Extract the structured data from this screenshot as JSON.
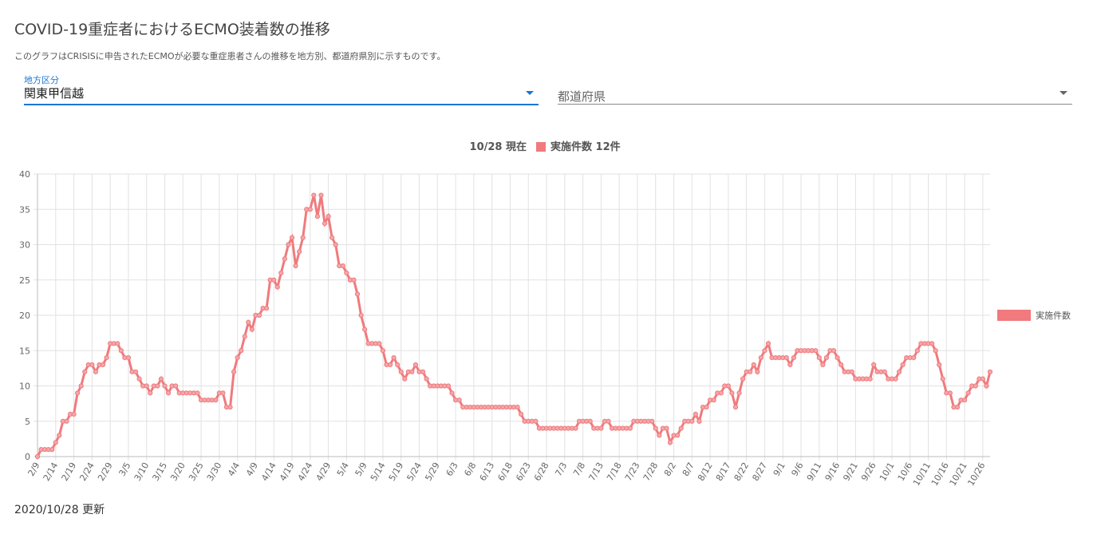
{
  "header": {
    "title": "COVID-19重症者におけるECMO装着数の推移",
    "description": "このグラフはCRISISに申告されたECMOが必要な重症患者さんの推移を地方別、都道府県別に示すものです。"
  },
  "filters": {
    "region_label": "地方区分",
    "region_value": "関東甲信越",
    "prefecture_placeholder": "都道府県"
  },
  "chart_data": {
    "type": "line",
    "title": "10/28 現在",
    "headline_legend": "実施件数 12件",
    "categories": [
      "2/9",
      null,
      null,
      null,
      null,
      "2/14",
      null,
      null,
      null,
      null,
      "2/19",
      null,
      null,
      null,
      null,
      "2/24",
      null,
      null,
      null,
      null,
      "2/29",
      null,
      null,
      null,
      null,
      "3/5",
      null,
      null,
      null,
      null,
      "3/10",
      null,
      null,
      null,
      null,
      "3/15",
      null,
      null,
      null,
      null,
      "3/20",
      null,
      null,
      null,
      null,
      "3/25",
      null,
      null,
      null,
      null,
      "3/30",
      null,
      null,
      null,
      null,
      "4/4",
      null,
      null,
      null,
      null,
      "4/9",
      null,
      null,
      null,
      null,
      "4/14",
      null,
      null,
      null,
      null,
      "4/19",
      null,
      null,
      null,
      null,
      "4/24",
      null,
      null,
      null,
      null,
      "4/29",
      null,
      null,
      null,
      null,
      "5/4",
      null,
      null,
      null,
      null,
      "5/9",
      null,
      null,
      null,
      null,
      "5/14",
      null,
      null,
      null,
      null,
      "5/19",
      null,
      null,
      null,
      null,
      "5/24",
      null,
      null,
      null,
      null,
      "5/29",
      null,
      null,
      null,
      null,
      "6/3",
      null,
      null,
      null,
      null,
      "6/8",
      null,
      null,
      null,
      null,
      "6/13",
      null,
      null,
      null,
      null,
      "6/18",
      null,
      null,
      null,
      null,
      "6/23",
      null,
      null,
      null,
      null,
      "6/28",
      null,
      null,
      null,
      null,
      "7/3",
      null,
      null,
      null,
      null,
      "7/8",
      null,
      null,
      null,
      null,
      "7/13",
      null,
      null,
      null,
      null,
      "7/18",
      null,
      null,
      null,
      null,
      "7/23",
      null,
      null,
      null,
      null,
      "7/28",
      null,
      null,
      null,
      null,
      "8/2",
      null,
      null,
      null,
      null,
      "8/7",
      null,
      null,
      null,
      null,
      "8/12",
      null,
      null,
      null,
      null,
      "8/17",
      null,
      null,
      null,
      null,
      "8/22",
      null,
      null,
      null,
      null,
      "8/27",
      null,
      null,
      null,
      null,
      "9/1",
      null,
      null,
      null,
      null,
      "9/6",
      null,
      null,
      null,
      null,
      "9/11",
      null,
      null,
      null,
      null,
      "9/16",
      null,
      null,
      null,
      null,
      "9/21",
      null,
      null,
      null,
      null,
      "9/26",
      null,
      null,
      null,
      null,
      "10/1",
      null,
      null,
      null,
      null,
      "10/6",
      null,
      null,
      null,
      null,
      "10/11",
      null,
      null,
      null,
      null,
      "10/16",
      null,
      null,
      null,
      null,
      "10/21",
      null,
      null,
      null,
      null,
      "10/26",
      null,
      null
    ],
    "series": [
      {
        "name": "実施件数",
        "color": "#f07a7d",
        "values": [
          0,
          1,
          1,
          1,
          1,
          2,
          3,
          5,
          5,
          6,
          6,
          9,
          10,
          12,
          13,
          13,
          12,
          13,
          13,
          14,
          16,
          16,
          16,
          15,
          14,
          14,
          12,
          12,
          11,
          10,
          10,
          9,
          10,
          10,
          11,
          10,
          9,
          10,
          10,
          9,
          9,
          9,
          9,
          9,
          9,
          8,
          8,
          8,
          8,
          8,
          9,
          9,
          7,
          7,
          12,
          14,
          15,
          17,
          19,
          18,
          20,
          20,
          21,
          21,
          25,
          25,
          24,
          26,
          28,
          30,
          31,
          27,
          29,
          31,
          35,
          35,
          37,
          34,
          37,
          33,
          34,
          31,
          30,
          27,
          27,
          26,
          25,
          25,
          23,
          20,
          18,
          16,
          16,
          16,
          16,
          15,
          13,
          13,
          14,
          13,
          12,
          11,
          12,
          12,
          13,
          12,
          12,
          11,
          10,
          10,
          10,
          10,
          10,
          10,
          9,
          8,
          8,
          7,
          7,
          7,
          7,
          7,
          7,
          7,
          7,
          7,
          7,
          7,
          7,
          7,
          7,
          7,
          7,
          6,
          5,
          5,
          5,
          5,
          4,
          4,
          4,
          4,
          4,
          4,
          4,
          4,
          4,
          4,
          4,
          5,
          5,
          5,
          5,
          4,
          4,
          4,
          5,
          5,
          4,
          4,
          4,
          4,
          4,
          4,
          5,
          5,
          5,
          5,
          5,
          5,
          4,
          3,
          4,
          4,
          2,
          3,
          3,
          4,
          5,
          5,
          5,
          6,
          5,
          7,
          7,
          8,
          8,
          9,
          9,
          10,
          10,
          9,
          7,
          9,
          11,
          12,
          12,
          13,
          12,
          14,
          15,
          16,
          14,
          14,
          14,
          14,
          14,
          13,
          14,
          15,
          15,
          15,
          15,
          15,
          15,
          14,
          13,
          14,
          15,
          15,
          14,
          13,
          12,
          12,
          12,
          11,
          11,
          11,
          11,
          11,
          13,
          12,
          12,
          12,
          11,
          11,
          11,
          12,
          13,
          14,
          14,
          14,
          15,
          16,
          16,
          16,
          16,
          15,
          13,
          11,
          9,
          9,
          7,
          7,
          8,
          8,
          9,
          10,
          10,
          11,
          11,
          10,
          12
        ]
      }
    ],
    "ylim": [
      0,
      40
    ],
    "yticks": [
      0,
      5,
      10,
      15,
      20,
      25,
      30,
      35,
      40
    ],
    "grid": true,
    "legend": "right"
  },
  "footer": {
    "updated": "2020/10/28 更新"
  }
}
